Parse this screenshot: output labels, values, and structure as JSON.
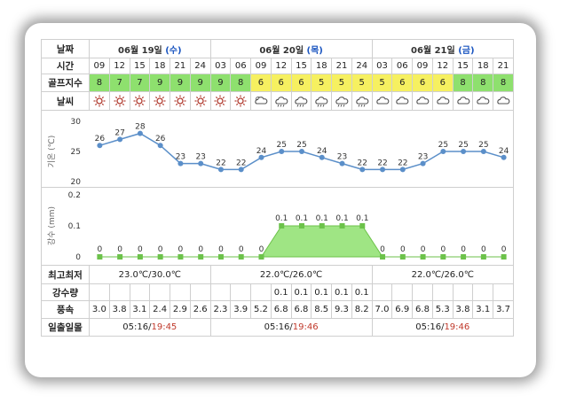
{
  "header": {
    "date_label": "날짜",
    "time_label": "시간",
    "golf_label": "골프지수",
    "weather_label": "날씨",
    "maxmin_label": "최고최저",
    "rainamt_label": "강수량",
    "wind_label": "풍속",
    "sun_label": "일출일몰"
  },
  "days": [
    {
      "date": "06월 19일",
      "weekday": "(수)",
      "maxmin": "23.0℃/30.0℃",
      "sunrise": "05:16/",
      "sunset": "19:45"
    },
    {
      "date": "06월 20일",
      "weekday": "(목)",
      "maxmin": "22.0℃/26.0℃",
      "sunrise": "05:16/",
      "sunset": "19:46"
    },
    {
      "date": "06월 21일",
      "weekday": "(금)",
      "maxmin": "22.0℃/26.0℃",
      "sunrise": "05:16/",
      "sunset": "19:46"
    }
  ],
  "times": [
    "09",
    "12",
    "15",
    "18",
    "21",
    "24",
    "03",
    "06",
    "09",
    "12",
    "15",
    "18",
    "21",
    "24",
    "03",
    "06",
    "09",
    "12",
    "15",
    "18",
    "21"
  ],
  "golf_index": [
    "8",
    "7",
    "7",
    "9",
    "9",
    "9",
    "9",
    "8",
    "6",
    "6",
    "6",
    "5",
    "5",
    "5",
    "5",
    "6",
    "6",
    "6",
    "8",
    "8",
    "8"
  ],
  "golf_colors": [
    "green",
    "green",
    "green",
    "green",
    "green",
    "green",
    "green",
    "green",
    "yellow",
    "yellow",
    "yellow",
    "yellow",
    "yellow",
    "yellow",
    "yellow",
    "yellow",
    "yellow",
    "yellow",
    "green",
    "green",
    "green"
  ],
  "weather_icons": [
    "sun-icon",
    "sun-icon",
    "sun-icon",
    "sun-icon",
    "sun-icon",
    "sun-icon",
    "sun-icon",
    "sun-icon",
    "partly-cloudy-icon",
    "rain-cloud-icon",
    "rain-cloud-icon",
    "rain-cloud-icon",
    "rain-cloud-icon",
    "rain-cloud-icon",
    "cloud-icon",
    "cloud-icon",
    "cloud-icon",
    "cloud-icon",
    "cloud-icon",
    "cloud-icon",
    "cloud-icon"
  ],
  "rain_amount": [
    "",
    "",
    "",
    "",
    "",
    "",
    "",
    "",
    "",
    "0.1",
    "0.1",
    "0.1",
    "0.1",
    "0.1",
    "",
    "",
    "",
    "",
    "",
    "",
    ""
  ],
  "wind": [
    "3.0",
    "3.8",
    "3.1",
    "2.4",
    "2.9",
    "2.6",
    "2.3",
    "3.9",
    "5.2",
    "6.8",
    "6.8",
    "8.5",
    "9.3",
    "8.2",
    "7.0",
    "6.9",
    "6.8",
    "5.3",
    "3.8",
    "3.1",
    "3.7"
  ],
  "colors": {
    "line": "#5b8fc9",
    "golf_green": "#8ee06e",
    "golf_yellow": "#f6f060",
    "rain_fill": "#8ee06e",
    "sunset": "#c0392b"
  },
  "chart_data": [
    {
      "type": "line",
      "title": "",
      "ylabel": "기온 (℃)",
      "ylim": [
        20,
        30
      ],
      "yticks": [
        20,
        25,
        30
      ],
      "x": [
        "09",
        "12",
        "15",
        "18",
        "21",
        "24",
        "03",
        "06",
        "09",
        "12",
        "15",
        "18",
        "21",
        "24",
        "03",
        "06",
        "09",
        "12",
        "15",
        "18",
        "21"
      ],
      "series": [
        {
          "values": [
            26,
            27,
            28,
            26,
            23,
            23,
            22,
            22,
            24,
            25,
            25,
            24,
            23,
            22,
            22,
            22,
            23,
            25,
            25,
            25,
            24
          ]
        }
      ],
      "data_labels": [
        "26",
        "27",
        "28",
        "26",
        "23",
        "23",
        "22",
        "22",
        "24",
        "25",
        "25",
        "24",
        "23",
        "22",
        "22",
        "22",
        "23",
        "25",
        "25",
        "25",
        "24"
      ]
    },
    {
      "type": "area",
      "title": "",
      "ylabel": "강수 (mm)",
      "ylim": [
        0,
        0.2
      ],
      "yticks": [
        "0",
        "0.1",
        "0.2"
      ],
      "x": [
        "09",
        "12",
        "15",
        "18",
        "21",
        "24",
        "03",
        "06",
        "09",
        "12",
        "15",
        "18",
        "21",
        "24",
        "03",
        "06",
        "09",
        "12",
        "15",
        "18",
        "21"
      ],
      "series": [
        {
          "values": [
            0,
            0,
            0,
            0,
            0,
            0,
            0,
            0,
            0,
            0.1,
            0.1,
            0.1,
            0.1,
            0.1,
            0,
            0,
            0,
            0,
            0,
            0,
            0
          ]
        }
      ],
      "data_labels": [
        "0",
        "0",
        "0",
        "0",
        "0",
        "0",
        "0",
        "0",
        "0",
        "0.1",
        "0.1",
        "0.1",
        "0.1",
        "0.1",
        "0",
        "0",
        "0",
        "0",
        "0",
        "0",
        "0"
      ]
    }
  ]
}
